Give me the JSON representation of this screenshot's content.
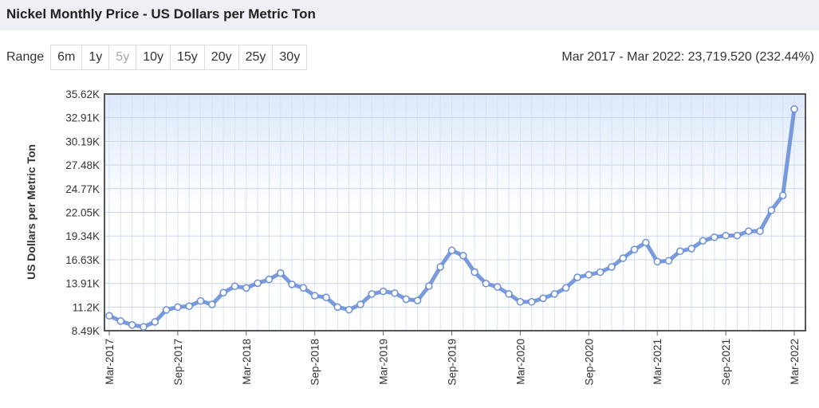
{
  "header": {
    "title": "Nickel Monthly Price - US Dollars per Metric Ton"
  },
  "range": {
    "label": "Range",
    "options": [
      "6m",
      "1y",
      "5y",
      "10y",
      "15y",
      "20y",
      "25y",
      "30y"
    ],
    "selected": "5y"
  },
  "summary": "Mar 2017 - Mar 2022: 23,719.520 (232.44%)",
  "chart_data": {
    "type": "line",
    "y_label": "US Dollars per Metric Ton",
    "categories": [
      "Mar-2017",
      null,
      null,
      null,
      null,
      null,
      "Sep-2017",
      null,
      null,
      null,
      null,
      null,
      "Mar-2018",
      null,
      null,
      null,
      null,
      null,
      "Sep-2018",
      null,
      null,
      null,
      null,
      null,
      "Mar-2019",
      null,
      null,
      null,
      null,
      null,
      "Sep-2019",
      null,
      null,
      null,
      null,
      null,
      "Mar-2020",
      null,
      null,
      null,
      null,
      null,
      "Sep-2020",
      null,
      null,
      null,
      null,
      null,
      "Mar-2021",
      null,
      null,
      null,
      null,
      null,
      "Sep-2021",
      null,
      null,
      null,
      null,
      null,
      "Mar-2022"
    ],
    "series": [
      {
        "name": "Nickel",
        "color": "#6a8fd8",
        "values": [
          10200,
          9600,
          9150,
          8930,
          9500,
          10880,
          11200,
          11300,
          11900,
          11500,
          12850,
          13580,
          13390,
          13940,
          14370,
          15100,
          13800,
          13400,
          12500,
          12300,
          11200,
          10900,
          11500,
          12700,
          13000,
          12800,
          12100,
          11950,
          13600,
          15800,
          17700,
          17100,
          15200,
          13900,
          13500,
          12700,
          11800,
          11800,
          12200,
          12700,
          13400,
          14600,
          14900,
          15200,
          15800,
          16800,
          17800,
          18600,
          16400,
          16500,
          17600,
          17900,
          18800,
          19200,
          19400,
          19400,
          19900,
          19900,
          22300,
          24000,
          33900
        ]
      }
    ],
    "ylim": [
      8490,
      35620
    ],
    "yticks": [
      {
        "value": 8490,
        "label": "8.49K"
      },
      {
        "value": 11200,
        "label": "11.2K"
      },
      {
        "value": 13910,
        "label": "13.91K"
      },
      {
        "value": 16630,
        "label": "16.63K"
      },
      {
        "value": 19340,
        "label": "19.34K"
      },
      {
        "value": 22050,
        "label": "22.05K"
      },
      {
        "value": 24770,
        "label": "24.77K"
      },
      {
        "value": 27480,
        "label": "27.48K"
      },
      {
        "value": 30190,
        "label": "30.19K"
      },
      {
        "value": 32910,
        "label": "32.91K"
      },
      {
        "value": 35620,
        "label": "35.62K"
      }
    ],
    "grid": true
  }
}
